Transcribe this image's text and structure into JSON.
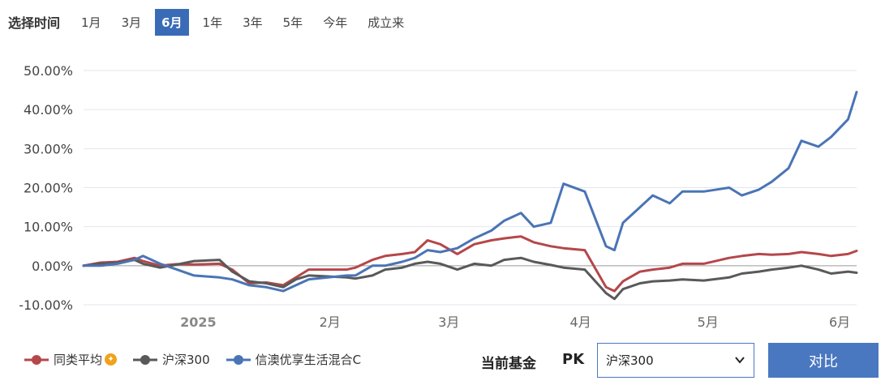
{
  "range_selector": {
    "title": "选择时间",
    "options": [
      "1月",
      "3月",
      "6月",
      "1年",
      "3年",
      "5年",
      "今年",
      "成立来"
    ],
    "selected": "6月"
  },
  "chart_data": {
    "type": "line",
    "y_unit": "%",
    "ylim": [
      -10,
      50
    ],
    "y_ticks": [
      "50.00%",
      "40.00%",
      "30.00%",
      "20.00%",
      "10.00%",
      "0.00%",
      "-10.00%"
    ],
    "y_tick_values": [
      50,
      40,
      30,
      20,
      10,
      0,
      -10
    ],
    "x_ticks": [
      "2025",
      "2月",
      "3月",
      "4月",
      "5月",
      "6月"
    ],
    "x_tick_dates": [
      "2025-01-01",
      "2025-02-01",
      "2025-03-01",
      "2025-04-01",
      "2025-05-01",
      "2025-06-01"
    ],
    "xlim": [
      "2024-12-05",
      "2025-06-05"
    ],
    "series": [
      {
        "name": "同类平均",
        "color": "#b5474a",
        "points": [
          [
            "2024-12-05",
            0
          ],
          [
            "2024-12-09",
            0.8
          ],
          [
            "2024-12-13",
            1.0
          ],
          [
            "2024-12-17",
            2.0
          ],
          [
            "2024-12-19",
            1.2
          ],
          [
            "2024-12-23",
            0.0
          ],
          [
            "2024-12-27",
            0.4
          ],
          [
            "2024-12-31",
            0.3
          ],
          [
            "2025-01-06",
            0.5
          ],
          [
            "2025-01-09",
            -1.0
          ],
          [
            "2025-01-13",
            -4.5
          ],
          [
            "2025-01-17",
            -4.3
          ],
          [
            "2025-01-21",
            -5.0
          ],
          [
            "2025-01-24",
            -3.0
          ],
          [
            "2025-01-27",
            -1.0
          ],
          [
            "2025-02-05",
            -1.0
          ],
          [
            "2025-02-07",
            -0.5
          ],
          [
            "2025-02-11",
            1.5
          ],
          [
            "2025-02-14",
            2.5
          ],
          [
            "2025-02-18",
            3.0
          ],
          [
            "2025-02-21",
            3.5
          ],
          [
            "2025-02-24",
            6.5
          ],
          [
            "2025-02-27",
            5.5
          ],
          [
            "2025-03-03",
            3.0
          ],
          [
            "2025-03-07",
            5.5
          ],
          [
            "2025-03-11",
            6.5
          ],
          [
            "2025-03-14",
            7.0
          ],
          [
            "2025-03-18",
            7.5
          ],
          [
            "2025-03-21",
            6.0
          ],
          [
            "2025-03-25",
            5.0
          ],
          [
            "2025-03-28",
            4.5
          ],
          [
            "2025-04-02",
            4.0
          ],
          [
            "2025-04-07",
            -5.5
          ],
          [
            "2025-04-09",
            -6.5
          ],
          [
            "2025-04-11",
            -4.0
          ],
          [
            "2025-04-15",
            -1.5
          ],
          [
            "2025-04-18",
            -1.0
          ],
          [
            "2025-04-22",
            -0.5
          ],
          [
            "2025-04-25",
            0.5
          ],
          [
            "2025-04-30",
            0.5
          ],
          [
            "2025-05-06",
            2.0
          ],
          [
            "2025-05-09",
            2.5
          ],
          [
            "2025-05-13",
            3.0
          ],
          [
            "2025-05-16",
            2.8
          ],
          [
            "2025-05-20",
            3.0
          ],
          [
            "2025-05-23",
            3.5
          ],
          [
            "2025-05-27",
            3.0
          ],
          [
            "2025-05-30",
            2.5
          ],
          [
            "2025-06-03",
            3.0
          ],
          [
            "2025-06-05",
            3.8
          ]
        ]
      },
      {
        "name": "沪深300",
        "color": "#595959",
        "points": [
          [
            "2024-12-05",
            0
          ],
          [
            "2024-12-09",
            0.5
          ],
          [
            "2024-12-13",
            0.8
          ],
          [
            "2024-12-17",
            1.5
          ],
          [
            "2024-12-19",
            0.5
          ],
          [
            "2024-12-23",
            -0.5
          ],
          [
            "2024-12-27",
            0.3
          ],
          [
            "2024-12-31",
            1.2
          ],
          [
            "2025-01-06",
            1.5
          ],
          [
            "2025-01-09",
            -1.5
          ],
          [
            "2025-01-13",
            -4.0
          ],
          [
            "2025-01-17",
            -4.5
          ],
          [
            "2025-01-21",
            -5.5
          ],
          [
            "2025-01-24",
            -3.5
          ],
          [
            "2025-01-27",
            -2.5
          ],
          [
            "2025-02-05",
            -3.0
          ],
          [
            "2025-02-07",
            -3.3
          ],
          [
            "2025-02-11",
            -2.5
          ],
          [
            "2025-02-14",
            -1.0
          ],
          [
            "2025-02-18",
            -0.5
          ],
          [
            "2025-02-21",
            0.5
          ],
          [
            "2025-02-24",
            1.0
          ],
          [
            "2025-02-27",
            0.5
          ],
          [
            "2025-03-03",
            -1.0
          ],
          [
            "2025-03-07",
            0.5
          ],
          [
            "2025-03-11",
            0.0
          ],
          [
            "2025-03-14",
            1.5
          ],
          [
            "2025-03-18",
            2.0
          ],
          [
            "2025-03-21",
            1.0
          ],
          [
            "2025-03-25",
            0.2
          ],
          [
            "2025-03-28",
            -0.5
          ],
          [
            "2025-04-02",
            -1.0
          ],
          [
            "2025-04-07",
            -7.0
          ],
          [
            "2025-04-09",
            -8.5
          ],
          [
            "2025-04-11",
            -6.0
          ],
          [
            "2025-04-15",
            -4.5
          ],
          [
            "2025-04-18",
            -4.0
          ],
          [
            "2025-04-22",
            -3.8
          ],
          [
            "2025-04-25",
            -3.5
          ],
          [
            "2025-04-30",
            -3.8
          ],
          [
            "2025-05-06",
            -3.0
          ],
          [
            "2025-05-09",
            -2.0
          ],
          [
            "2025-05-13",
            -1.5
          ],
          [
            "2025-05-16",
            -1.0
          ],
          [
            "2025-05-20",
            -0.5
          ],
          [
            "2025-05-23",
            0.0
          ],
          [
            "2025-05-27",
            -1.0
          ],
          [
            "2025-05-30",
            -2.0
          ],
          [
            "2025-06-03",
            -1.5
          ],
          [
            "2025-06-05",
            -1.8
          ]
        ]
      },
      {
        "name": "信澳优享生活混合C",
        "color": "#4a74b5",
        "points": [
          [
            "2024-12-05",
            0
          ],
          [
            "2024-12-09",
            0.0
          ],
          [
            "2024-12-13",
            0.5
          ],
          [
            "2024-12-17",
            1.5
          ],
          [
            "2024-12-19",
            2.5
          ],
          [
            "2024-12-23",
            0.5
          ],
          [
            "2024-12-27",
            -1.0
          ],
          [
            "2024-12-31",
            -2.5
          ],
          [
            "2025-01-06",
            -3.0
          ],
          [
            "2025-01-09",
            -3.5
          ],
          [
            "2025-01-13",
            -5.0
          ],
          [
            "2025-01-17",
            -5.5
          ],
          [
            "2025-01-21",
            -6.5
          ],
          [
            "2025-01-24",
            -5.0
          ],
          [
            "2025-01-27",
            -3.5
          ],
          [
            "2025-02-05",
            -2.5
          ],
          [
            "2025-02-07",
            -2.5
          ],
          [
            "2025-02-11",
            0.0
          ],
          [
            "2025-02-14",
            0.0
          ],
          [
            "2025-02-18",
            1.0
          ],
          [
            "2025-02-21",
            2.0
          ],
          [
            "2025-02-24",
            4.0
          ],
          [
            "2025-02-27",
            3.5
          ],
          [
            "2025-03-03",
            4.5
          ],
          [
            "2025-03-07",
            7.0
          ],
          [
            "2025-03-11",
            9.0
          ],
          [
            "2025-03-14",
            11.5
          ],
          [
            "2025-03-18",
            13.5
          ],
          [
            "2025-03-21",
            10.0
          ],
          [
            "2025-03-25",
            11.0
          ],
          [
            "2025-03-28",
            21.0
          ],
          [
            "2025-04-02",
            19.0
          ],
          [
            "2025-04-07",
            5.0
          ],
          [
            "2025-04-09",
            4.0
          ],
          [
            "2025-04-11",
            11.0
          ],
          [
            "2025-04-15",
            15.0
          ],
          [
            "2025-04-18",
            18.0
          ],
          [
            "2025-04-22",
            16.0
          ],
          [
            "2025-04-25",
            19.0
          ],
          [
            "2025-04-30",
            19.0
          ],
          [
            "2025-05-06",
            20.0
          ],
          [
            "2025-05-09",
            18.0
          ],
          [
            "2025-05-13",
            19.5
          ],
          [
            "2025-05-16",
            21.5
          ],
          [
            "2025-05-20",
            25.0
          ],
          [
            "2025-05-23",
            32.0
          ],
          [
            "2025-05-27",
            30.5
          ],
          [
            "2025-05-30",
            33.0
          ],
          [
            "2025-06-03",
            37.5
          ],
          [
            "2025-06-05",
            44.5
          ]
        ]
      }
    ]
  },
  "legend": [
    {
      "name": "同类平均",
      "color": "#b5474a",
      "badge_icon": "bonus-icon"
    },
    {
      "name": "沪深300",
      "color": "#595959"
    },
    {
      "name": "信澳优享生活混合C",
      "color": "#4a74b5"
    }
  ],
  "compare": {
    "current_label": "当前基金",
    "pk_label": "PK",
    "selected_benchmark": "沪深300",
    "button_label": "对比"
  }
}
